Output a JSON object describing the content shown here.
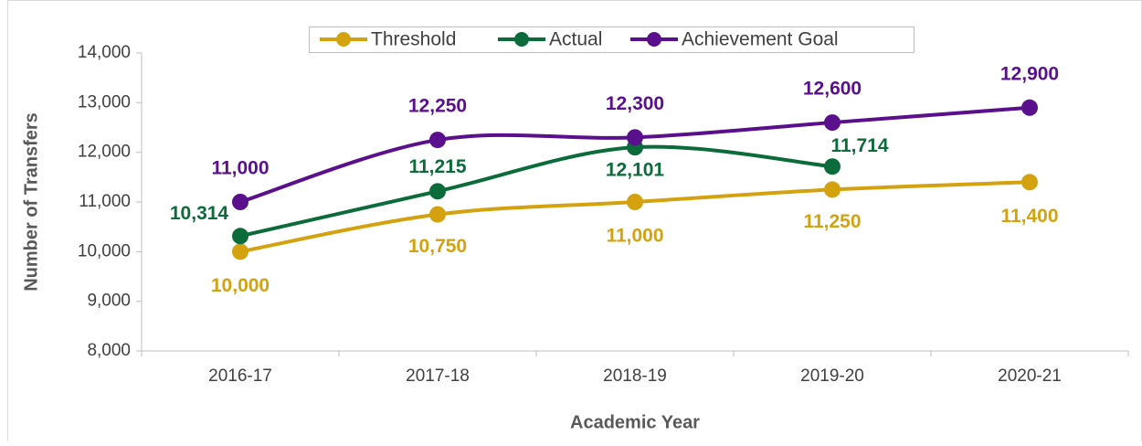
{
  "chart_data": {
    "type": "line",
    "x_label": "Academic Year",
    "y_label": "Number of Transfers",
    "categories": [
      "2016-17",
      "2017-18",
      "2018-19",
      "2019-20",
      "2020-21"
    ],
    "series": [
      {
        "name": "Threshold",
        "color": "#d4a20f",
        "values": [
          10000,
          10750,
          11000,
          11250,
          11400
        ],
        "value_labels": [
          "10,000",
          "10,750",
          "11,000",
          "11,250",
          "11,400"
        ]
      },
      {
        "name": "Actual",
        "color": "#0b6b3a",
        "values": [
          10314,
          11215,
          12101,
          11714,
          null
        ],
        "value_labels": [
          "10,314",
          "11,215",
          "12,101",
          "11,714",
          null
        ]
      },
      {
        "name": "Achievement Goal",
        "color": "#5a0f8c",
        "values": [
          11000,
          12250,
          12300,
          12600,
          12900
        ],
        "value_labels": [
          "11,000",
          "12,250",
          "12,300",
          "12,600",
          "12,900"
        ]
      }
    ],
    "ylim": [
      8000,
      14000
    ],
    "yticks": [
      {
        "value": 8000,
        "label": "8,000"
      },
      {
        "value": 9000,
        "label": "9,000"
      },
      {
        "value": 10000,
        "label": "10,000"
      },
      {
        "value": 11000,
        "label": "11,000"
      },
      {
        "value": 12000,
        "label": "12,000"
      },
      {
        "value": 13000,
        "label": "13,000"
      },
      {
        "value": 14000,
        "label": "14,000"
      }
    ],
    "legend": "top"
  }
}
